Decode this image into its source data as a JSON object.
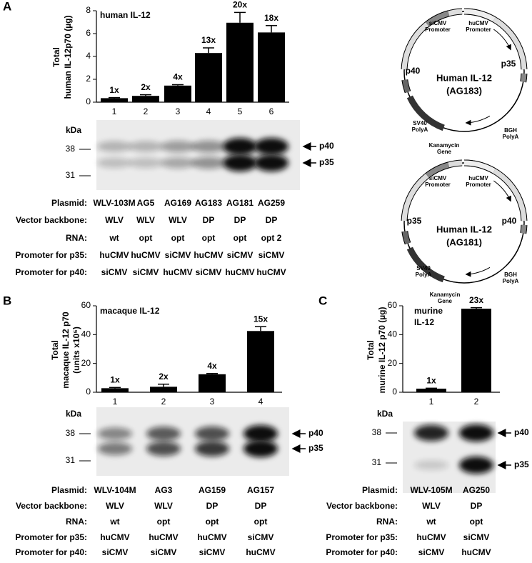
{
  "panels": [
    "A",
    "B",
    "C"
  ],
  "chart_data": [
    {
      "type": "bar",
      "title": [
        "human IL-12"
      ],
      "ylabel": [
        "Total",
        "human IL-12p70 (µg)"
      ],
      "categories": [
        "1",
        "2",
        "3",
        "4",
        "5",
        "6"
      ],
      "values": [
        0.35,
        0.55,
        1.45,
        4.3,
        6.95,
        6.1
      ],
      "errors": [
        0.05,
        0.1,
        0.08,
        0.45,
        0.9,
        0.6
      ],
      "annotations": [
        "1x",
        "2x",
        "4x",
        "13x",
        "20x",
        "18x"
      ],
      "ylim": [
        0,
        8
      ],
      "yticks": [
        0,
        2,
        4,
        6,
        8
      ],
      "color": "#000000"
    },
    {
      "type": "bar",
      "title": [
        "macaque IL-12"
      ],
      "ylabel": [
        "Total",
        "macaque IL-12 p70",
        "(units x10⁵)"
      ],
      "categories": [
        "1",
        "2",
        "3",
        "4"
      ],
      "values": [
        2.8,
        3.8,
        12.5,
        42.5
      ],
      "errors": [
        0.5,
        1.8,
        0.5,
        3
      ],
      "annotations": [
        "1x",
        "2x",
        "4x",
        "15x"
      ],
      "ylim": [
        0,
        60
      ],
      "yticks": [
        0,
        20,
        40,
        60
      ],
      "color": "#000000"
    },
    {
      "type": "bar",
      "title": [
        "murine",
        "IL-12"
      ],
      "ylabel": [
        "Total",
        "murine IL-12 p70 (µg)"
      ],
      "categories": [
        "1",
        "2"
      ],
      "values": [
        2.5,
        58
      ],
      "errors": [
        0.3,
        0.7
      ],
      "annotations": [
        "1x",
        "23x"
      ],
      "ylim": [
        0,
        60
      ],
      "yticks": [
        0,
        20,
        40,
        60
      ],
      "color": "#000000"
    }
  ],
  "blots": [
    {
      "unit": "kDa",
      "markers": [
        38,
        31
      ],
      "bands": [
        "p40",
        "p35"
      ]
    },
    {
      "unit": "kDa",
      "markers": [
        38,
        31
      ],
      "bands": [
        "p40",
        "p35"
      ]
    },
    {
      "unit": "kDa",
      "markers": [
        38,
        31
      ],
      "bands": [
        "p40",
        "p35"
      ]
    }
  ],
  "tables": [
    {
      "rows": [
        {
          "label": "Plasmid:",
          "cells": [
            "WLV-103M",
            "AG5",
            "AG169",
            "AG183",
            "AG181",
            "AG259"
          ]
        },
        {
          "label": "Vector backbone:",
          "cells": [
            "WLV",
            "WLV",
            "WLV",
            "DP",
            "DP",
            "DP"
          ]
        },
        {
          "label": "RNA:",
          "cells": [
            "wt",
            "opt",
            "opt",
            "opt",
            "opt",
            "opt 2"
          ]
        },
        {
          "label": "Promoter for p35:",
          "cells": [
            "huCMV",
            "huCMV",
            "siCMV",
            "huCMV",
            "siCMV",
            "siCMV"
          ]
        },
        {
          "label": "Promoter for p40:",
          "cells": [
            "siCMV",
            "siCMV",
            "huCMV",
            "siCMV",
            "huCMV",
            "huCMV"
          ]
        }
      ]
    },
    {
      "rows": [
        {
          "label": "Plasmid:",
          "cells": [
            "WLV-104M",
            "AG3",
            "AG159",
            "AG157"
          ]
        },
        {
          "label": "Vector backbone:",
          "cells": [
            "WLV",
            "WLV",
            "DP",
            "DP"
          ]
        },
        {
          "label": "RNA:",
          "cells": [
            "wt",
            "opt",
            "opt",
            "opt"
          ]
        },
        {
          "label": "Promoter for p35:",
          "cells": [
            "huCMV",
            "huCMV",
            "huCMV",
            "siCMV"
          ]
        },
        {
          "label": "Promoter for p40:",
          "cells": [
            "siCMV",
            "siCMV",
            "siCMV",
            "huCMV"
          ]
        }
      ]
    },
    {
      "rows": [
        {
          "label": "Plasmid:",
          "cells": [
            "WLV-105M",
            "AG250"
          ]
        },
        {
          "label": "Vector backbone:",
          "cells": [
            "WLV",
            "DP"
          ]
        },
        {
          "label": "RNA:",
          "cells": [
            "wt",
            "opt"
          ]
        },
        {
          "label": "Promoter for p35:",
          "cells": [
            "huCMV",
            "siCMV"
          ]
        },
        {
          "label": "Promoter for p40:",
          "cells": [
            "siCMV",
            "huCMV"
          ]
        }
      ]
    }
  ],
  "plasmids": [
    {
      "title": [
        "Human IL-12",
        "(AG183)"
      ],
      "labels": [
        [
          "siCMV",
          "Promoter"
        ],
        [
          "huCMV",
          "Promoter"
        ],
        [
          "p35"
        ],
        [
          "p40"
        ],
        [
          "SV40",
          "PolyA"
        ],
        [
          "BGH",
          "PolyA"
        ],
        [
          "Kanamycin",
          "Gene"
        ]
      ]
    },
    {
      "title": [
        "Human IL-12",
        "(AG181)"
      ],
      "labels": [
        [
          "siCMV",
          "Promoter"
        ],
        [
          "huCMV",
          "Promoter"
        ],
        [
          "p35"
        ],
        [
          "p40"
        ],
        [
          "SV40",
          "PolyA"
        ],
        [
          "BGH",
          "PolyA"
        ],
        [
          "Kanamycin",
          "Gene"
        ]
      ]
    }
  ]
}
